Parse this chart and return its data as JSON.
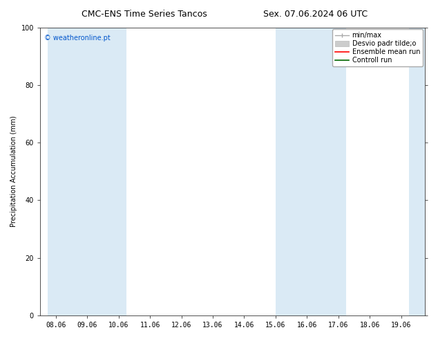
{
  "title_left": "CMC-ENS Time Series Tancos",
  "title_right": "Sex. 07.06.2024 06 UTC",
  "ylabel": "Precipitation Accumulation (mm)",
  "watermark": "© weatheronline.pt",
  "watermark_color": "#0055cc",
  "ylim": [
    0,
    100
  ],
  "xlim_min": 7.5,
  "xlim_max": 19.75,
  "xtick_labels": [
    "08.06",
    "09.06",
    "10.06",
    "11.06",
    "12.06",
    "13.06",
    "14.06",
    "15.06",
    "16.06",
    "17.06",
    "18.06",
    "19.06"
  ],
  "xtick_positions": [
    8,
    9,
    10,
    11,
    12,
    13,
    14,
    15,
    16,
    17,
    18,
    19
  ],
  "ytick_labels": [
    "0",
    "20",
    "40",
    "60",
    "80",
    "100"
  ],
  "ytick_positions": [
    0,
    20,
    40,
    60,
    80,
    100
  ],
  "shaded_regions": [
    {
      "xmin": 7.75,
      "xmax": 8.5,
      "color": "#daeaf5"
    },
    {
      "xmin": 8.5,
      "xmax": 9.5,
      "color": "#daeaf5"
    },
    {
      "xmin": 9.5,
      "xmax": 10.25,
      "color": "#daeaf5"
    },
    {
      "xmin": 15.0,
      "xmax": 15.5,
      "color": "#daeaf5"
    },
    {
      "xmin": 15.5,
      "xmax": 16.5,
      "color": "#daeaf5"
    },
    {
      "xmin": 16.5,
      "xmax": 17.25,
      "color": "#daeaf5"
    },
    {
      "xmin": 19.25,
      "xmax": 19.75,
      "color": "#daeaf5"
    }
  ],
  "background_color": "#ffffff",
  "plot_bg_color": "#ffffff",
  "title_fontsize": 9,
  "label_fontsize": 7,
  "tick_fontsize": 7,
  "legend_fontsize": 7
}
